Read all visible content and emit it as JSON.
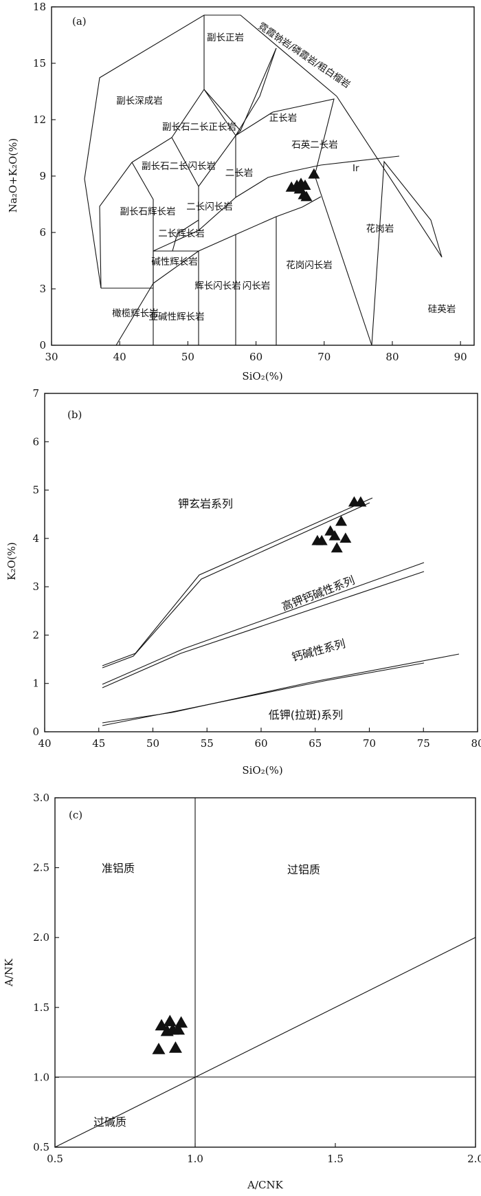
{
  "chart_data": [
    {
      "type": "scatter",
      "panel_label": "(a)",
      "xlabel": "SiO₂(%)",
      "ylabel": "Na₂O+K₂O(%)",
      "xlim": [
        30,
        92
      ],
      "ylim": [
        0,
        18
      ],
      "x_ticks": [
        "30",
        "40",
        "50",
        "60",
        "70",
        "80",
        "90"
      ],
      "y_ticks": [
        "0",
        "3",
        "6",
        "9",
        "12",
        "15",
        "18"
      ],
      "field_labels": [
        "霓霞钠岩/磷霞岩/粗白榴岩",
        "副长正岩",
        "副长深成岩",
        "正长岩",
        "副长石二长正长岩",
        "副长石二长闪长岩",
        "二长岩",
        "石英二长岩",
        "二长闪长岩",
        "副长石辉长岩",
        "二长辉长岩",
        "碱性辉长岩",
        "橄榄辉长岩",
        "亚碱性辉长岩",
        "辉长闪长岩",
        "闪长岩",
        "花岗闪长岩",
        "花岗岩",
        "硅英岩",
        "Ir"
      ],
      "series": [
        {
          "points": [
            [
              65.2,
              8.4
            ],
            [
              66.0,
              8.5
            ],
            [
              66.6,
              8.6
            ],
            [
              67.2,
              8.5
            ],
            [
              67.0,
              8.0
            ],
            [
              67.4,
              7.9
            ],
            [
              68.5,
              9.1
            ],
            [
              66.4,
              8.3
            ]
          ]
        }
      ]
    },
    {
      "type": "scatter",
      "panel_label": "(b)",
      "xlabel": "SiO₂(%)",
      "ylabel": "K₂O(%)",
      "xlim": [
        40,
        80
      ],
      "ylim": [
        0,
        7
      ],
      "x_ticks": [
        "40",
        "45",
        "50",
        "55",
        "60",
        "65",
        "70",
        "75",
        "80"
      ],
      "y_ticks": [
        "0",
        "1",
        "2",
        "3",
        "4",
        "5",
        "6",
        "7"
      ],
      "field_labels": [
        "钾玄岩系列",
        "高钾钙碱性系列",
        "钙碱性系列",
        "低钾(拉斑)系列"
      ],
      "series": [
        {
          "points": [
            [
              65.2,
              3.95
            ],
            [
              65.6,
              3.95
            ],
            [
              66.4,
              4.15
            ],
            [
              66.8,
              4.05
            ],
            [
              67.4,
              4.35
            ],
            [
              67.8,
              4.0
            ],
            [
              67.0,
              3.8
            ],
            [
              68.6,
              4.75
            ],
            [
              69.2,
              4.75
            ]
          ]
        }
      ]
    },
    {
      "type": "scatter",
      "panel_label": "(c)",
      "xlabel": "A/CNK",
      "ylabel": "A/NK",
      "xlim": [
        0.5,
        2.0
      ],
      "ylim": [
        0.5,
        3.0
      ],
      "x_ticks": [
        "0.5",
        "1.0",
        "1.5",
        "2.0"
      ],
      "y_ticks": [
        "0.5",
        "1.0",
        "1.5",
        "2.0",
        "2.5",
        "3.0"
      ],
      "field_labels": [
        "准铝质",
        "过铝质",
        "过碱质"
      ],
      "series": [
        {
          "points": [
            [
              0.88,
              1.37
            ],
            [
              0.91,
              1.4
            ],
            [
              0.95,
              1.39
            ],
            [
              0.9,
              1.33
            ],
            [
              0.92,
              1.34
            ],
            [
              0.94,
              1.34
            ],
            [
              0.87,
              1.2
            ],
            [
              0.93,
              1.21
            ]
          ]
        }
      ]
    }
  ]
}
